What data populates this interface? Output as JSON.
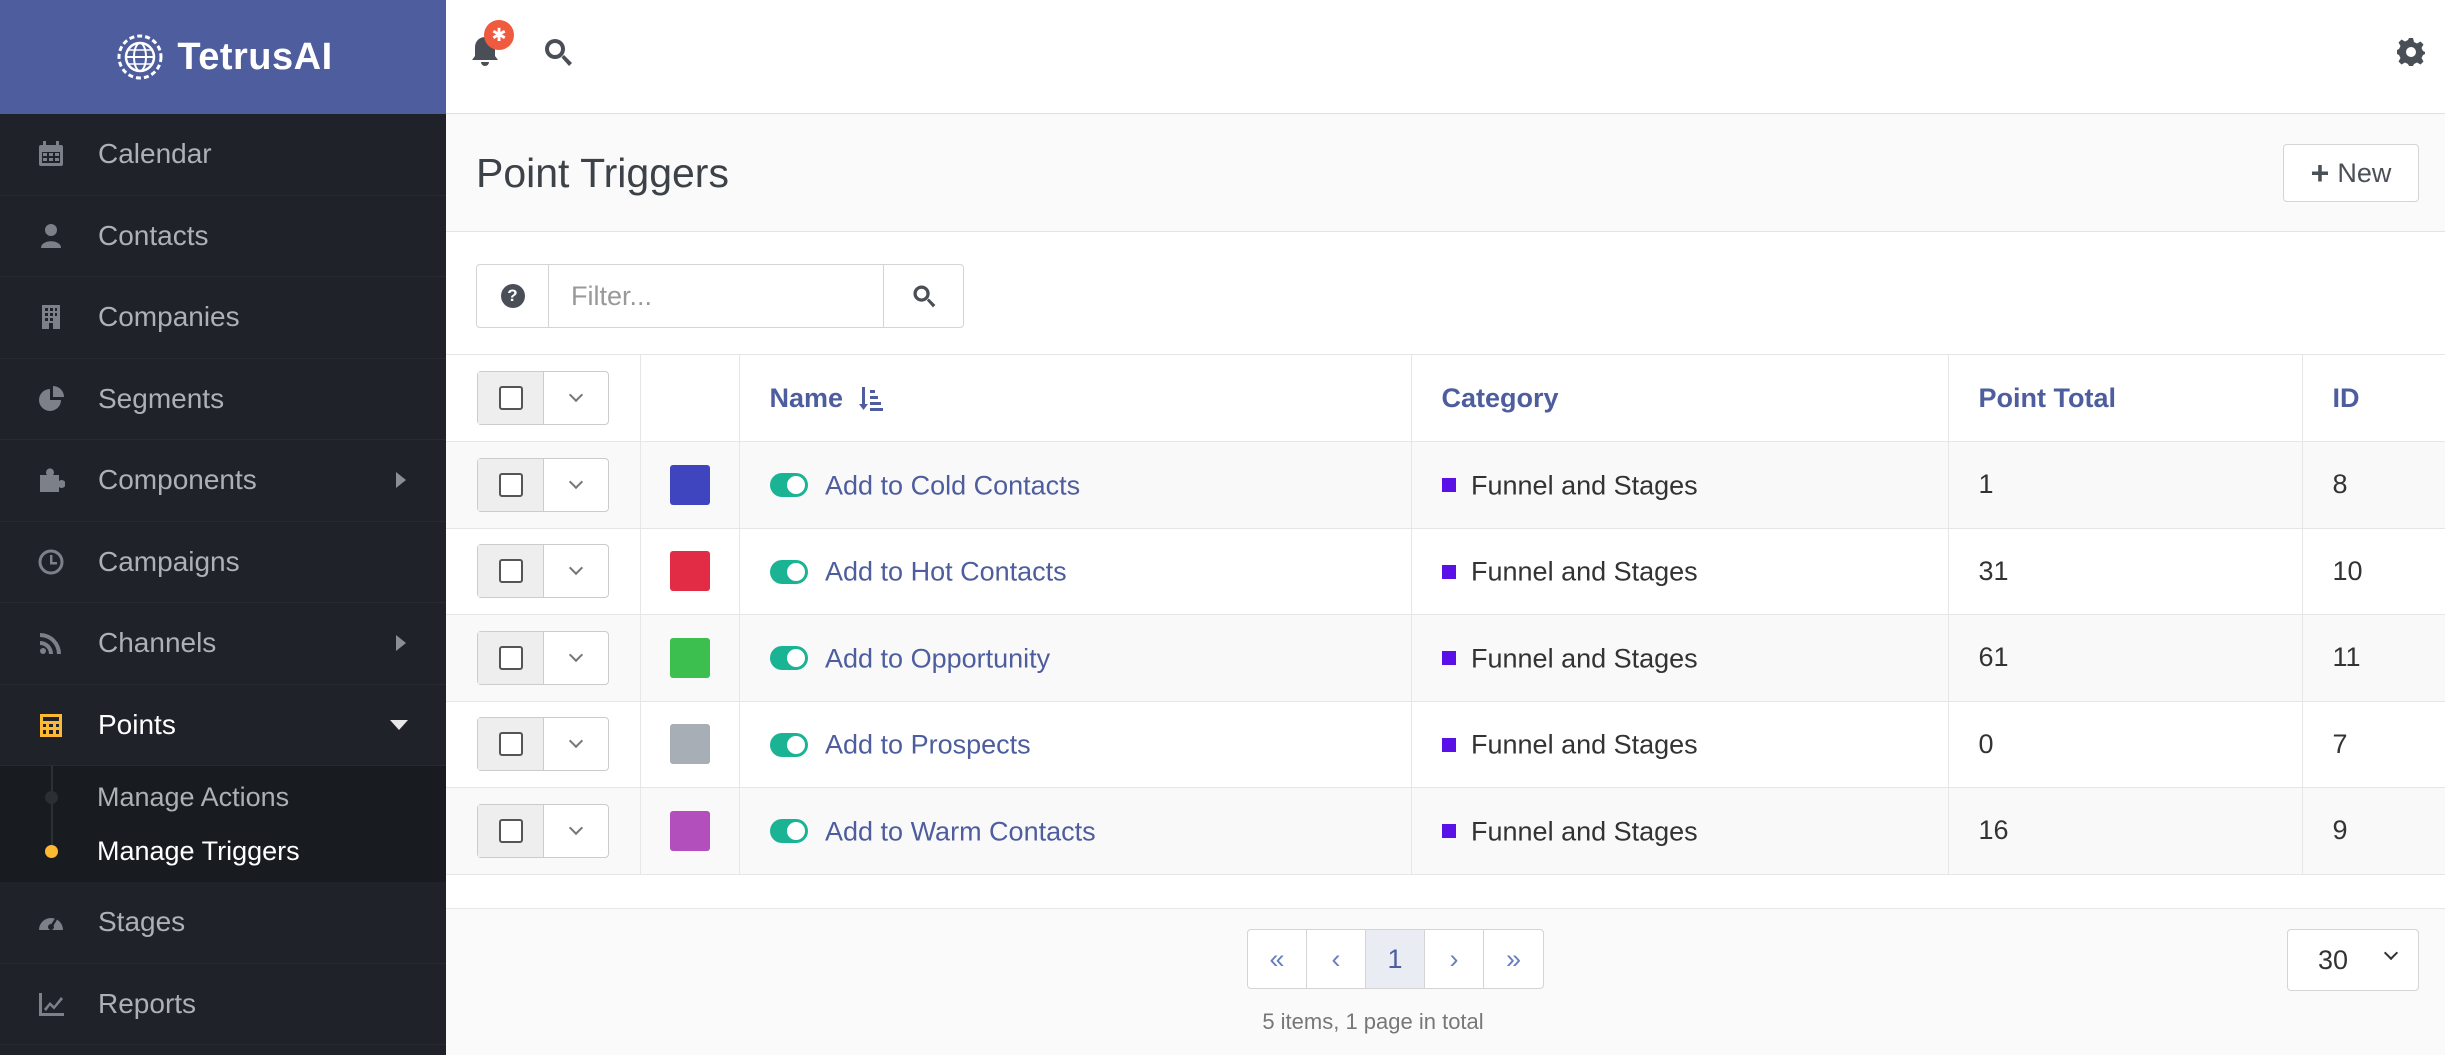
{
  "brand": {
    "name": "TetrusAI"
  },
  "sidebar": {
    "items": [
      {
        "label": "Calendar",
        "icon": "calendar-icon"
      },
      {
        "label": "Contacts",
        "icon": "user-icon"
      },
      {
        "label": "Companies",
        "icon": "building-icon"
      },
      {
        "label": "Segments",
        "icon": "pie-chart-icon"
      },
      {
        "label": "Components",
        "icon": "puzzle-icon",
        "expandable": true
      },
      {
        "label": "Campaigns",
        "icon": "clock-icon"
      },
      {
        "label": "Channels",
        "icon": "rss-icon",
        "expandable": true
      },
      {
        "label": "Points",
        "icon": "calculator-icon",
        "expanded": true,
        "active": true
      },
      {
        "label": "Stages",
        "icon": "dashboard-icon"
      },
      {
        "label": "Reports",
        "icon": "line-chart-icon"
      }
    ],
    "points_sub": [
      {
        "label": "Manage Actions"
      },
      {
        "label": "Manage Triggers",
        "active": true
      }
    ]
  },
  "topbar": {
    "notification_badge": "✱"
  },
  "page": {
    "title": "Point Triggers",
    "new_button": "New",
    "filter_placeholder": "Filter...",
    "help_icon": "?"
  },
  "table": {
    "columns": {
      "name": "Name",
      "category": "Category",
      "point_total": "Point Total",
      "id": "ID"
    },
    "rows": [
      {
        "color": "#3f44bf",
        "name": "Add to Cold Contacts",
        "category": "Funnel and Stages",
        "category_color": "#5a11e8",
        "point_total": "1",
        "id": "8"
      },
      {
        "color": "#e22b45",
        "name": "Add to Hot Contacts",
        "category": "Funnel and Stages",
        "category_color": "#5a11e8",
        "point_total": "31",
        "id": "10"
      },
      {
        "color": "#3cbf4f",
        "name": "Add to Opportunity",
        "category": "Funnel and Stages",
        "category_color": "#5a11e8",
        "point_total": "61",
        "id": "11"
      },
      {
        "color": "#a8aeb5",
        "name": "Add to Prospects",
        "category": "Funnel and Stages",
        "category_color": "#5a11e8",
        "point_total": "0",
        "id": "7"
      },
      {
        "color": "#b24fbd",
        "name": "Add to Warm Contacts",
        "category": "Funnel and Stages",
        "category_color": "#5a11e8",
        "point_total": "16",
        "id": "9"
      }
    ]
  },
  "pagination": {
    "first": "«",
    "prev": "‹",
    "current": "1",
    "next": "›",
    "last": "»",
    "info": "5 items, 1 page in total",
    "per_page": "30"
  }
}
